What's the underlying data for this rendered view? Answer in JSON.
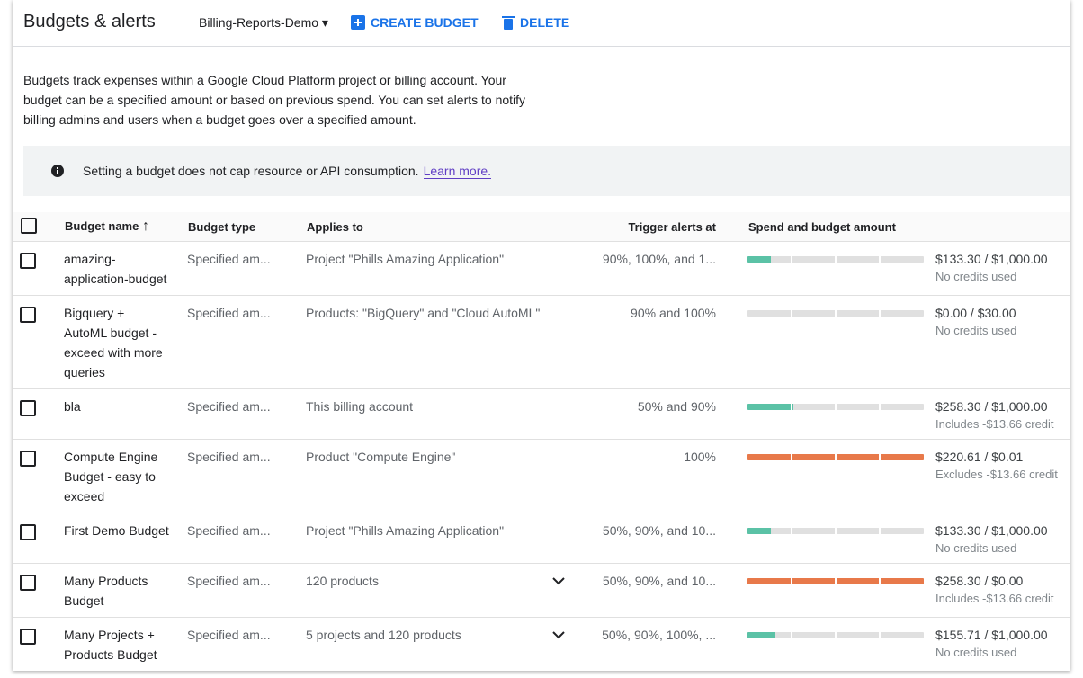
{
  "header": {
    "title": "Budgets & alerts",
    "project": "Billing-Reports-Demo",
    "create": "CREATE BUDGET",
    "delete": "DELETE"
  },
  "description": "Budgets track expenses within a Google Cloud Platform project or billing account. Your budget can be a specified amount or based on previous spend. You can set alerts to notify billing admins and users when a budget goes over a specified amount.",
  "notice": {
    "text": "Setting a budget does not cap resource or API consumption.",
    "link": "Learn more."
  },
  "table": {
    "columns": [
      "Budget name",
      "Budget type",
      "Applies to",
      "Trigger alerts at",
      "Spend and budget amount"
    ],
    "rows": [
      {
        "name": "amazing-application-budget",
        "type": "Specified am...",
        "applies_to": "Project \"Phills Amazing Application\"",
        "trigger": "90%, 100%, and 1...",
        "amount": "$133.30 / $1,000.00",
        "credits": "No credits used"
      },
      {
        "name": "Bigquery + AutoML budget - exceed with more queries",
        "type": "Specified am...",
        "applies_to": "Products: \"BigQuery\" and \"Cloud AutoML\"",
        "trigger": "90% and 100%",
        "amount": "$0.00 / $30.00",
        "credits": "No credits used"
      },
      {
        "name": "bla",
        "type": "Specified am...",
        "applies_to": "This billing account",
        "trigger": "50% and 90%",
        "amount": "$258.30 / $1,000.00",
        "credits": "Includes -$13.66 credit"
      },
      {
        "name": "Compute Engine Budget - easy to exceed",
        "type": "Specified am...",
        "applies_to": "Product \"Compute Engine\"",
        "trigger": "100%",
        "amount": "$220.61 / $0.01",
        "credits": "Excludes -$13.66 credit"
      },
      {
        "name": "First Demo Budget",
        "type": "Specified am...",
        "applies_to": "Project \"Phills Amazing Application\"",
        "trigger": "50%, 90%, and 10...",
        "amount": "$133.30 / $1,000.00",
        "credits": "No credits used"
      },
      {
        "name": "Many Products Budget",
        "type": "Specified am...",
        "applies_to": "120 products",
        "expandable": true,
        "trigger": "50%, 90%, and 10...",
        "amount": "$258.30 / $0.00",
        "credits": "Includes -$13.66 credit"
      },
      {
        "name": "Many Projects + Products Budget",
        "type": "Specified am...",
        "applies_to": "5 projects and 120 products",
        "expandable": true,
        "trigger": "50%, 90%, 100%, ...",
        "amount": "$155.71 / $1,000.00",
        "credits": "No credits used"
      }
    ]
  }
}
